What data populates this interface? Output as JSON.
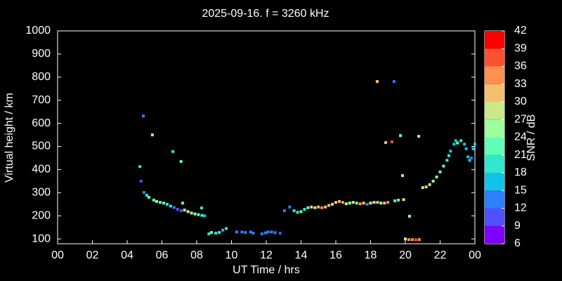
{
  "chart_data": {
    "type": "scatter",
    "title": "2025-09-16. f = 3260 kHz",
    "x_label": "UT Time / hrs",
    "y_label": "Virtual height / km",
    "xlim": [
      0,
      24
    ],
    "xticks": [
      {
        "value": 0,
        "label": "00"
      },
      {
        "value": 2,
        "label": "02"
      },
      {
        "value": 4,
        "label": "04"
      },
      {
        "value": 6,
        "label": "06"
      },
      {
        "value": 8,
        "label": "08"
      },
      10,
      12,
      14,
      16,
      18,
      20,
      22,
      {
        "value": 24,
        "label": "00"
      }
    ],
    "ylim": [
      79,
      1000
    ],
    "yticks": [
      100,
      200,
      300,
      400,
      500,
      600,
      700,
      800,
      900,
      1000
    ],
    "colorbar": {
      "label": "SNR / dB",
      "lim": [
        6,
        42
      ],
      "ticks": [
        6,
        9,
        12,
        15,
        18,
        21,
        24,
        27,
        30,
        33,
        36,
        39,
        42
      ],
      "colors": [
        "#8000ff",
        "#5050ff",
        "#2c80ff",
        "#10c4e8",
        "#30e8d0",
        "#60ffb8",
        "#9cff9c",
        "#c8e88a",
        "#f4c070",
        "#ff9050",
        "#ff5030",
        "#ff0000"
      ]
    },
    "x": [
      4.73,
      4.8,
      4.93,
      4.97,
      5.13,
      5.25,
      5.45,
      5.53,
      5.7,
      5.9,
      6.1,
      6.3,
      6.5,
      6.63,
      6.7,
      6.9,
      7.1,
      7.1,
      7.19,
      7.3,
      7.5,
      7.7,
      7.9,
      8.1,
      8.28,
      8.3,
      8.45,
      8.7,
      8.85,
      9.1,
      9.3,
      9.5,
      9.7,
      10.3,
      10.6,
      10.8,
      11.1,
      11.25,
      11.75,
      11.95,
      12.1,
      12.3,
      12.5,
      12.8,
      13.05,
      13.35,
      13.6,
      13.8,
      14.0,
      14.2,
      14.4,
      14.6,
      14.8,
      15.0,
      15.2,
      15.4,
      15.6,
      15.8,
      16.0,
      16.2,
      16.4,
      16.6,
      16.8,
      17.0,
      17.2,
      17.4,
      17.6,
      17.8,
      18.0,
      18.2,
      18.38,
      18.4,
      18.6,
      18.8,
      18.87,
      19.0,
      19.23,
      19.35,
      19.4,
      19.6,
      19.72,
      19.84,
      19.9,
      20.0,
      20.2,
      20.24,
      20.4,
      20.6,
      20.77,
      20.8,
      21.0,
      21.2,
      21.4,
      21.6,
      21.8,
      22.0,
      22.2,
      22.4,
      22.5,
      22.6,
      22.8,
      22.9,
      23.0,
      23.2,
      23.4,
      23.5,
      23.6,
      23.7,
      23.8,
      23.9,
      24.0
    ],
    "y": [
      413,
      350,
      632,
      301,
      289,
      280,
      550,
      268,
      262,
      258,
      255,
      250,
      242,
      478,
      236,
      228,
      435,
      222,
      255,
      225,
      218,
      212,
      208,
      205,
      234,
      202,
      200,
      122,
      128,
      125,
      128,
      138,
      145,
      130,
      130,
      128,
      130,
      125,
      122,
      126,
      130,
      130,
      127,
      125,
      222,
      238,
      222,
      215,
      218,
      228,
      235,
      238,
      235,
      238,
      235,
      238,
      245,
      250,
      258,
      262,
      258,
      252,
      255,
      258,
      255,
      252,
      255,
      250,
      255,
      258,
      781,
      258,
      255,
      255,
      517,
      258,
      520,
      781,
      265,
      268,
      547,
      374,
      270,
      100,
      97,
      198,
      97,
      96,
      544,
      97,
      322,
      325,
      335,
      350,
      368,
      390,
      415,
      440,
      460,
      480,
      510,
      525,
      515,
      525,
      510,
      490,
      455,
      440,
      450,
      490,
      510
    ],
    "snr": [
      20,
      11,
      14,
      13,
      19,
      22,
      25,
      22,
      25,
      22,
      21,
      20,
      19,
      20,
      13,
      9,
      21,
      10,
      23,
      24,
      28,
      26,
      24,
      22,
      19,
      20,
      16,
      20,
      22,
      18,
      20,
      16,
      19,
      14,
      13,
      12,
      13,
      12,
      14,
      13,
      12,
      14,
      13,
      11,
      13,
      12,
      19,
      20,
      22,
      20,
      22,
      28,
      27,
      30,
      34,
      32,
      30,
      28,
      31,
      30,
      33,
      27,
      25,
      24,
      22,
      35,
      30,
      14,
      28,
      27,
      32,
      30,
      26,
      31,
      32,
      35,
      37,
      13,
      23,
      22,
      21,
      24,
      28,
      27,
      33,
      26,
      34,
      36,
      28,
      35,
      28,
      30,
      27,
      26,
      25,
      22,
      21,
      20,
      18,
      17,
      16,
      16,
      22,
      18,
      17,
      16,
      15,
      15,
      14,
      16,
      15
    ]
  }
}
